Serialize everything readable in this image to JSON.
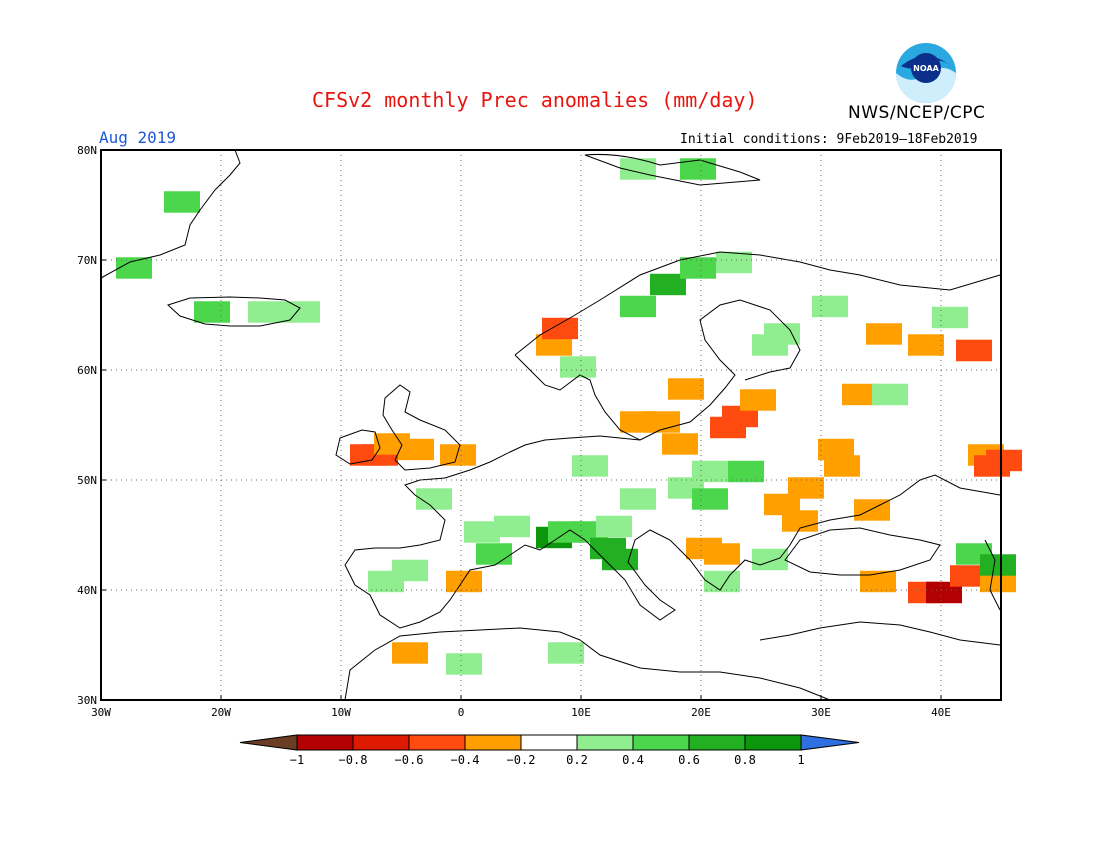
{
  "title": "CFSv2 monthly Prec anomalies (mm/day)",
  "month": "Aug 2019",
  "initial_conditions": "Initial conditions: 9Feb2019—18Feb2019",
  "agency": "NWS/NCEP/CPC",
  "logo_text": "NOAA",
  "map": {
    "lon_range": [
      -30,
      45
    ],
    "lat_range": [
      30,
      80
    ],
    "lon_ticks": [
      "30W",
      "20W",
      "10W",
      "0",
      "10E",
      "20E",
      "30E",
      "40E"
    ],
    "lat_ticks": [
      "30N",
      "40N",
      "50N",
      "60N",
      "70N",
      "80N"
    ],
    "grid": "dotted"
  },
  "legend": {
    "ticks": [
      "−1",
      "−0.8",
      "−0.6",
      "−0.4",
      "−0.2",
      "0.2",
      "0.4",
      "0.6",
      "0.8",
      "1"
    ],
    "colors": [
      "#6b3d24",
      "#b30000",
      "#dd1a00",
      "#ff4a10",
      "#ffa000",
      "#ffffff",
      "#90ee90",
      "#4cd64c",
      "#22b022",
      "#0c960c",
      "#2f6fe0"
    ]
  },
  "chart_data": {
    "type": "heatmap",
    "variable": "Prec anomaly",
    "units": "mm/day",
    "cells": [
      {
        "lon": -8.5,
        "lat": 52.5,
        "value": -0.5
      },
      {
        "lon": -7.5,
        "lat": 52.5,
        "value": -0.6
      },
      {
        "lon": -6.5,
        "lat": 53.5,
        "value": -0.3
      },
      {
        "lon": -4.5,
        "lat": 53,
        "value": -0.3
      },
      {
        "lon": -1,
        "lat": 52.5,
        "value": -0.3
      },
      {
        "lon": -0.5,
        "lat": 41,
        "value": -0.3
      },
      {
        "lon": -5,
        "lat": 34.5,
        "value": -0.3
      },
      {
        "lon": 7,
        "lat": 62.5,
        "value": -0.3
      },
      {
        "lon": 7.5,
        "lat": 64,
        "value": -0.5
      },
      {
        "lon": 14,
        "lat": 55.5,
        "value": -0.3
      },
      {
        "lon": 16,
        "lat": 55.5,
        "value": -0.3
      },
      {
        "lon": 17.5,
        "lat": 53.5,
        "value": -0.3
      },
      {
        "lon": 21.5,
        "lat": 55,
        "value": -0.5
      },
      {
        "lon": 22.5,
        "lat": 56,
        "value": -0.6
      },
      {
        "lon": 24,
        "lat": 57.5,
        "value": -0.3
      },
      {
        "lon": 18,
        "lat": 58.5,
        "value": -0.3
      },
      {
        "lon": 30.5,
        "lat": 53,
        "value": -0.3
      },
      {
        "lon": 31,
        "lat": 51.5,
        "value": -0.3
      },
      {
        "lon": 28,
        "lat": 49.5,
        "value": -0.3
      },
      {
        "lon": 26,
        "lat": 48,
        "value": -0.3
      },
      {
        "lon": 27.5,
        "lat": 46.5,
        "value": -0.3
      },
      {
        "lon": 32.5,
        "lat": 58,
        "value": -0.3
      },
      {
        "lon": 33.5,
        "lat": 47.5,
        "value": -0.3
      },
      {
        "lon": 34.5,
        "lat": 63.5,
        "value": -0.3
      },
      {
        "lon": 38,
        "lat": 62.5,
        "value": -0.3
      },
      {
        "lon": 42,
        "lat": 62,
        "value": -0.3
      },
      {
        "lon": 42,
        "lat": 62,
        "value": -0.6
      },
      {
        "lon": 43,
        "lat": 52.5,
        "value": -0.3
      },
      {
        "lon": 43.5,
        "lat": 51.5,
        "value": -0.5
      },
      {
        "lon": 44.5,
        "lat": 52,
        "value": -0.6
      },
      {
        "lon": 34,
        "lat": 41,
        "value": -0.3
      },
      {
        "lon": 38,
        "lat": 40,
        "value": -0.6
      },
      {
        "lon": 39.5,
        "lat": 40,
        "value": -0.9
      },
      {
        "lon": 41.5,
        "lat": 41.5,
        "value": -0.5
      },
      {
        "lon": 44,
        "lat": 41,
        "value": -0.3
      },
      {
        "lon": 19.5,
        "lat": 44,
        "value": -0.3
      },
      {
        "lon": 21,
        "lat": 43.5,
        "value": -0.3
      },
      {
        "lon": -5,
        "lat": 42,
        "value": 0.3
      },
      {
        "lon": -7,
        "lat": 41,
        "value": 0.3
      },
      {
        "lon": -3,
        "lat": 48.5,
        "value": 0.3
      },
      {
        "lon": 1,
        "lat": 45.5,
        "value": 0.3
      },
      {
        "lon": 3.5,
        "lat": 46,
        "value": 0.3
      },
      {
        "lon": 2,
        "lat": 43.5,
        "value": 0.5
      },
      {
        "lon": 7,
        "lat": 45,
        "value": 0.9
      },
      {
        "lon": 8,
        "lat": 45.5,
        "value": 0.5
      },
      {
        "lon": 10,
        "lat": 45.5,
        "value": 0.5
      },
      {
        "lon": 12,
        "lat": 46,
        "value": 0.3
      },
      {
        "lon": 11.5,
        "lat": 44,
        "value": 0.7
      },
      {
        "lon": 12.5,
        "lat": 43,
        "value": 0.7
      },
      {
        "lon": 8,
        "lat": 34.5,
        "value": 0.3
      },
      {
        "lon": -0.5,
        "lat": 33.5,
        "value": 0.3
      },
      {
        "lon": 10,
        "lat": 51.5,
        "value": 0.3
      },
      {
        "lon": 14,
        "lat": 48.5,
        "value": 0.3
      },
      {
        "lon": 18,
        "lat": 49.5,
        "value": 0.3
      },
      {
        "lon": 20,
        "lat": 51,
        "value": 0.3
      },
      {
        "lon": 23,
        "lat": 51,
        "value": 0.4
      },
      {
        "lon": 20,
        "lat": 48.5,
        "value": 0.5
      },
      {
        "lon": 25,
        "lat": 43,
        "value": 0.3
      },
      {
        "lon": 21,
        "lat": 41,
        "value": 0.3
      },
      {
        "lon": 9,
        "lat": 60.5,
        "value": 0.3
      },
      {
        "lon": 14,
        "lat": 66,
        "value": 0.5
      },
      {
        "lon": 16.5,
        "lat": 68,
        "value": 0.7
      },
      {
        "lon": 19,
        "lat": 69.5,
        "value": 0.5
      },
      {
        "lon": 22,
        "lat": 70,
        "value": 0.3
      },
      {
        "lon": 25,
        "lat": 62.5,
        "value": 0.3
      },
      {
        "lon": 26,
        "lat": 63.5,
        "value": 0.3
      },
      {
        "lon": 30,
        "lat": 66,
        "value": 0.3
      },
      {
        "lon": 35,
        "lat": 58,
        "value": 0.3
      },
      {
        "lon": 40,
        "lat": 65,
        "value": 0.3
      },
      {
        "lon": 19,
        "lat": 78.5,
        "value": 0.5
      },
      {
        "lon": 14,
        "lat": 78.5,
        "value": 0.3
      },
      {
        "lon": -21.5,
        "lat": 65.5,
        "value": 0.5
      },
      {
        "lon": -17,
        "lat": 65.5,
        "value": 0.3
      },
      {
        "lon": -14,
        "lat": 65.5,
        "value": 0.3
      },
      {
        "lon": -24,
        "lat": 75.5,
        "value": 0.4
      },
      {
        "lon": -28,
        "lat": 69.5,
        "value": 0.4
      },
      {
        "lon": 42,
        "lat": 43.5,
        "value": 0.5
      },
      {
        "lon": 44,
        "lat": 42.5,
        "value": 0.7
      }
    ]
  }
}
